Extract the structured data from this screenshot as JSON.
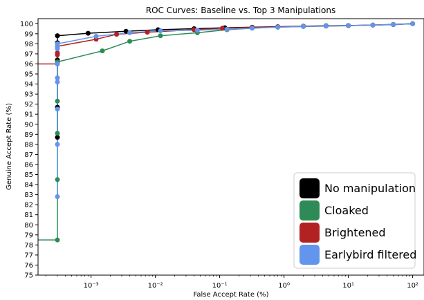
{
  "chart_data": {
    "type": "line",
    "title": "ROC Curves: Baseline vs. Top 3 Manipulations",
    "xlabel": "False Accept Rate (%)",
    "ylabel": "Genuine Accept Rate (%)",
    "xscale": "log",
    "xlim": [
      0.00015,
      150
    ],
    "ylim": [
      75,
      100.5
    ],
    "grid": false,
    "legend_position": "bottom-right",
    "x_ticks": [
      {
        "value": 0.001,
        "label": "10⁻³"
      },
      {
        "value": 0.01,
        "label": "10⁻²"
      },
      {
        "value": 0.1,
        "label": "10⁻¹"
      },
      {
        "value": 1,
        "label": "10⁰"
      },
      {
        "value": 10,
        "label": "10¹"
      },
      {
        "value": 100,
        "label": "10²"
      }
    ],
    "y_ticks": [
      75,
      76,
      77,
      78,
      79,
      80,
      81,
      82,
      83,
      84,
      85,
      86,
      87,
      88,
      89,
      90,
      91,
      92,
      93,
      94,
      95,
      96,
      97,
      98,
      99,
      100
    ],
    "series": [
      {
        "name": "No manipulation",
        "color": "#000000",
        "x": [
          0.0003,
          0.0003,
          0.0003,
          0.0003,
          0.0003,
          0.0003,
          0.0009,
          0.0035,
          0.011,
          0.04,
          0.12,
          0.32,
          0.8,
          2,
          4.5,
          10,
          24,
          50,
          100
        ],
        "y": [
          88.7,
          91.7,
          96.4,
          98.1,
          98.8,
          98.8,
          99.05,
          99.25,
          99.4,
          99.5,
          99.6,
          99.65,
          99.7,
          99.75,
          99.8,
          99.82,
          99.86,
          99.92,
          100
        ]
      },
      {
        "name": "Cloaked",
        "color": "#2e8b57",
        "x": [
          0.00015,
          0.0003,
          0.0003,
          0.0003,
          0.0003,
          0.0003,
          0.0003,
          0.0003,
          0.0015,
          0.004,
          0.012,
          0.045,
          0.13,
          0.32,
          0.8,
          2,
          4.5,
          10,
          24,
          50,
          100
        ],
        "y": [
          78.5,
          78.5,
          84.5,
          89.1,
          92.3,
          94.6,
          96.1,
          96.2,
          97.3,
          98.25,
          98.8,
          99.1,
          99.4,
          99.55,
          99.65,
          99.72,
          99.78,
          99.82,
          99.86,
          99.9,
          100
        ]
      },
      {
        "name": "Brightened",
        "color": "#b22222",
        "x": [
          0.00015,
          0.0003,
          0.0003,
          0.0003,
          0.0003,
          0.0012,
          0.0025,
          0.0075,
          0.04,
          0.11,
          0.32,
          0.8,
          2,
          4.5,
          10,
          24,
          50,
          100
        ],
        "y": [
          96,
          96,
          96.9,
          97.1,
          97.75,
          98.45,
          98.95,
          99.15,
          99.4,
          99.55,
          99.62,
          99.68,
          99.72,
          99.76,
          99.8,
          99.86,
          99.92,
          100
        ]
      },
      {
        "name": "Earlybird filtered",
        "color": "#6495ed",
        "x": [
          0.0003,
          0.0003,
          0.0003,
          0.0003,
          0.0003,
          0.0003,
          0.0003,
          0.0003,
          0.0003,
          0.0012,
          0.004,
          0.012,
          0.045,
          0.13,
          0.32,
          0.8,
          2,
          4.5,
          10,
          24,
          50,
          100
        ],
        "y": [
          82.8,
          88.0,
          91.5,
          94.2,
          94.6,
          96.0,
          97.5,
          97.8,
          98.0,
          98.75,
          99.1,
          99.3,
          99.35,
          99.45,
          99.55,
          99.65,
          99.72,
          99.76,
          99.82,
          99.86,
          99.92,
          100
        ]
      }
    ]
  }
}
